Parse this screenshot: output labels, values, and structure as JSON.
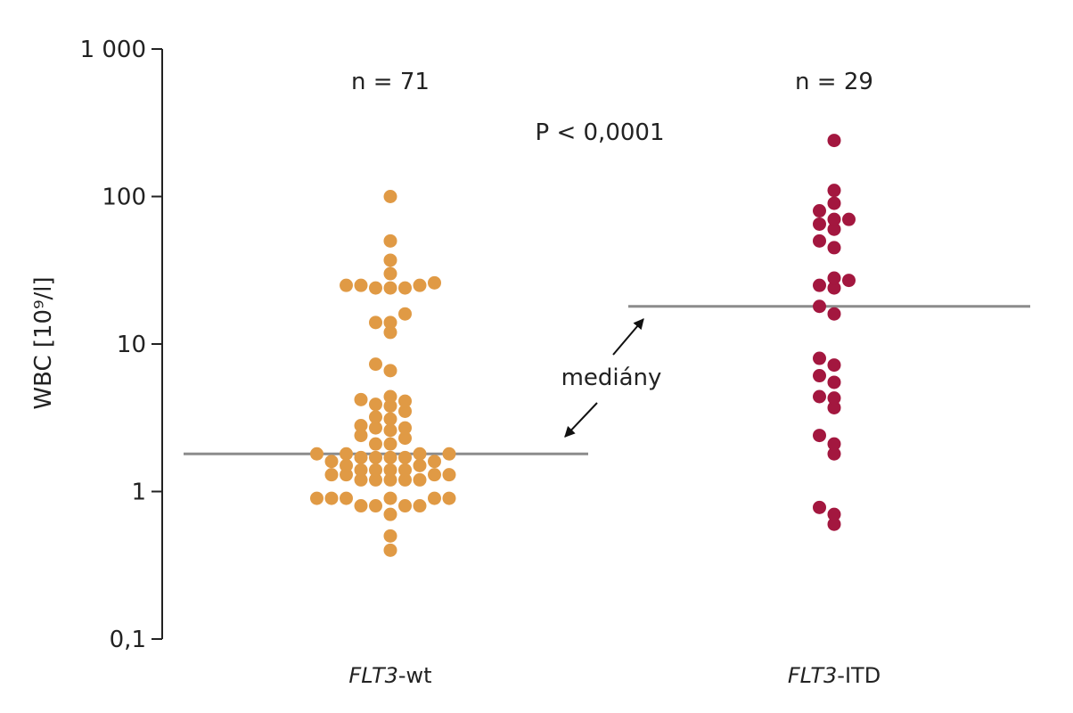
{
  "chart_data": {
    "type": "scatter",
    "title": "",
    "ylabel": "WBC [10⁹/l]",
    "xlabel": "",
    "yscale": "log",
    "ylim": [
      0.1,
      1000
    ],
    "yticks": [
      {
        "value": 1000,
        "label": "1 000"
      },
      {
        "value": 100,
        "label": "100"
      },
      {
        "value": 10,
        "label": "10"
      },
      {
        "value": 1,
        "label": "1"
      },
      {
        "value": 0.1,
        "label": "0,1"
      }
    ],
    "grid": false,
    "categories": [
      {
        "label_italic": "FLT3",
        "label_rest": "-wt"
      },
      {
        "label_italic": "FLT3",
        "label_rest": "-ITD"
      }
    ],
    "series": [
      {
        "color": "#e09a45",
        "values": [
          100,
          50,
          37,
          30,
          26,
          25,
          25,
          24,
          24,
          24,
          25,
          16,
          14,
          14,
          12,
          7.3,
          6.6,
          4.4,
          4.1,
          3.9,
          3.8,
          4.2,
          3.5,
          3.2,
          3.1,
          2.8,
          2.7,
          2.6,
          2.7,
          2.4,
          2.3,
          2.1,
          2.1,
          1.8,
          1.8,
          1.7,
          1.6,
          1.8,
          1.7,
          1.6,
          1.7,
          1.8,
          1.7,
          1.4,
          1.4,
          1.4,
          1.5,
          1.5,
          1.4,
          1.3,
          1.3,
          1.2,
          1.2,
          1.2,
          1.2,
          1.3,
          1.2,
          1.3,
          0.9,
          0.9,
          0.9,
          0.9,
          0.8,
          0.8,
          0.7,
          0.8,
          0.8,
          0.9,
          0.9,
          0.5,
          0.4
        ]
      },
      {
        "color": "#a3173f",
        "values": [
          240,
          110,
          90,
          80,
          70,
          65,
          70,
          60,
          50,
          45,
          28,
          27,
          25,
          24,
          18,
          16,
          8,
          7.2,
          6.1,
          5.5,
          4.4,
          4.3,
          3.7,
          2.4,
          2.1,
          1.8,
          0.78,
          0.7,
          0.6
        ]
      }
    ],
    "n_labels": [
      "n = 71",
      "n = 29"
    ],
    "medians": [
      1.8,
      18
    ],
    "pvalue_text": "P < 0,0001",
    "median_annotation": "mediány"
  }
}
